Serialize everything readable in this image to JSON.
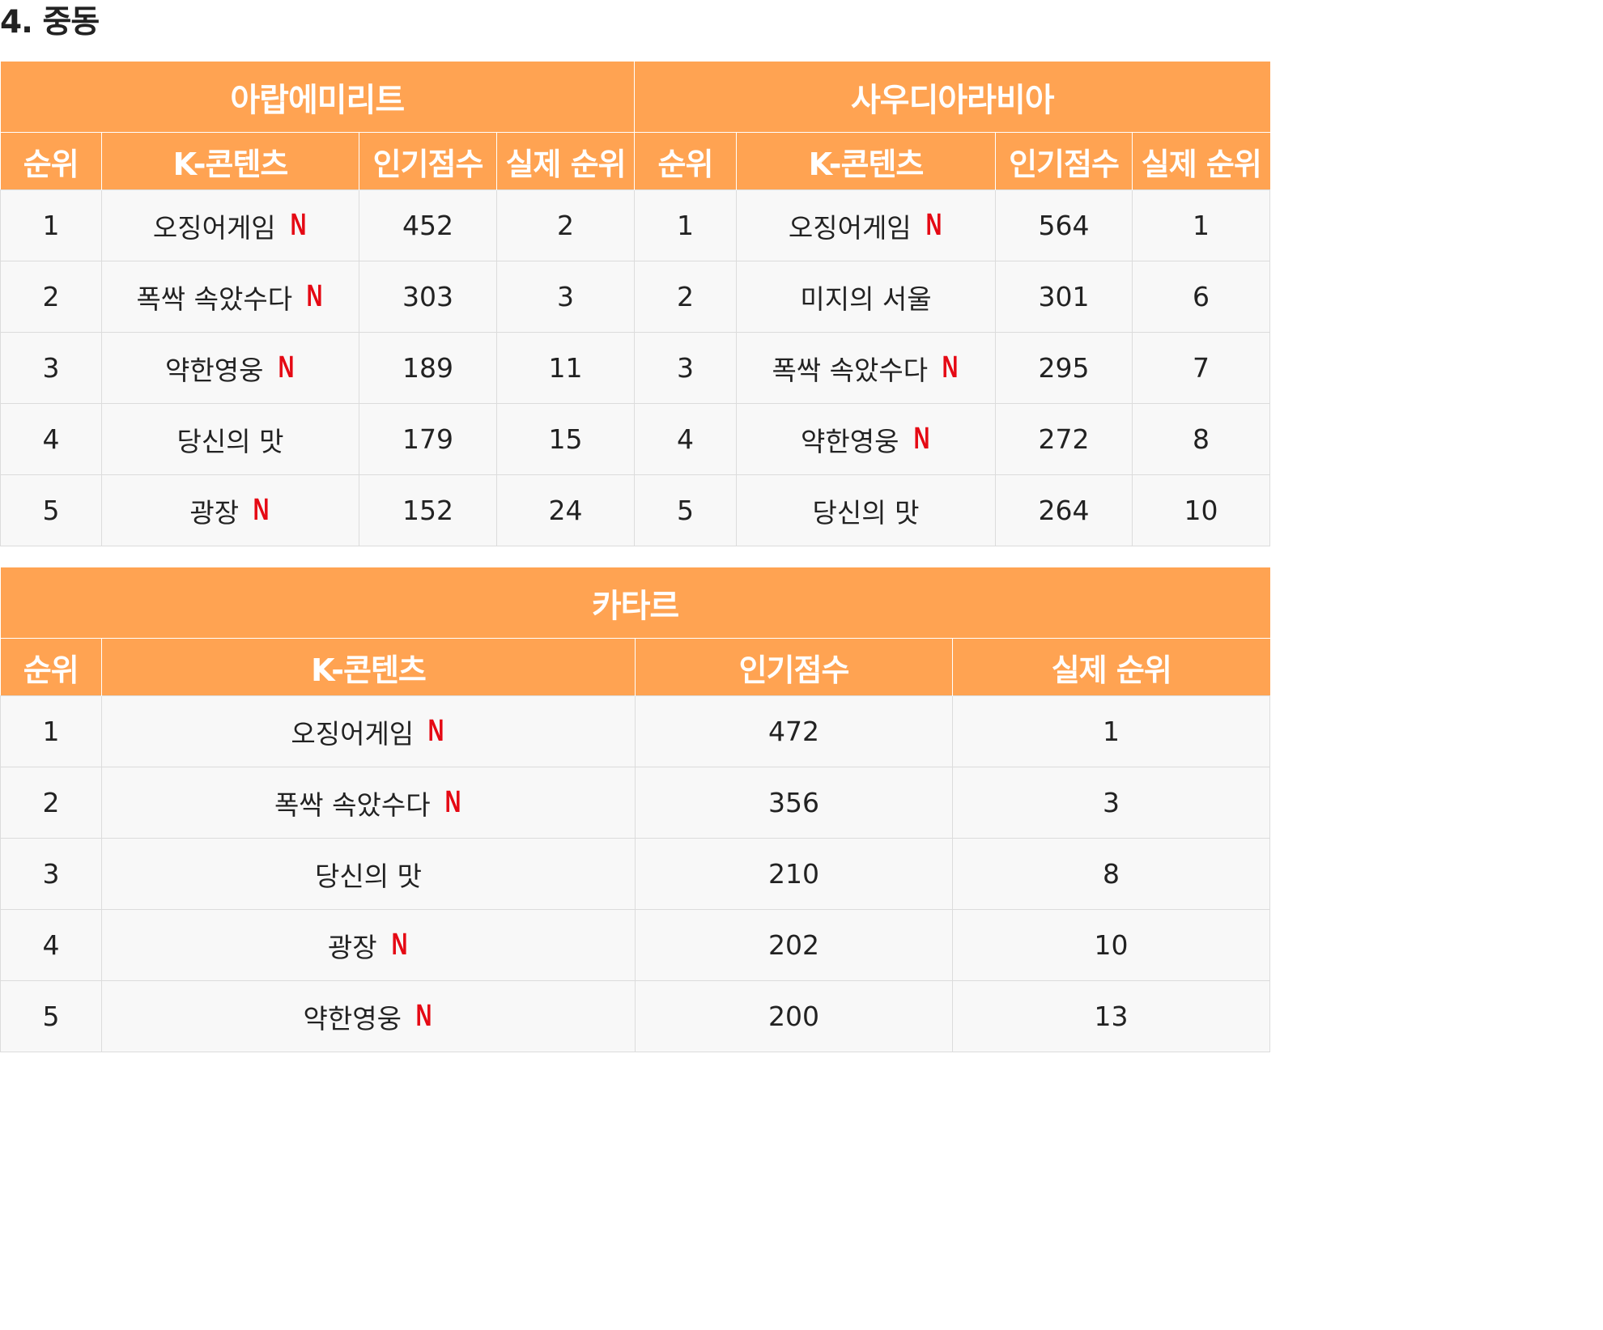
{
  "section_title": "4. 중동",
  "columns": [
    "순위",
    "K-콘텐츠",
    "인기점수",
    "실제 순위"
  ],
  "netflix_mark": "N",
  "uae": {
    "name": "아랍에미리트",
    "rows": [
      {
        "rank": "1",
        "title": "오징어게임",
        "netflix": true,
        "score": "452",
        "actual": "2"
      },
      {
        "rank": "2",
        "title": "폭싹 속았수다",
        "netflix": true,
        "score": "303",
        "actual": "3"
      },
      {
        "rank": "3",
        "title": "약한영웅",
        "netflix": true,
        "score": "189",
        "actual": "11"
      },
      {
        "rank": "4",
        "title": "당신의 맛",
        "netflix": false,
        "score": "179",
        "actual": "15"
      },
      {
        "rank": "5",
        "title": "광장",
        "netflix": true,
        "score": "152",
        "actual": "24"
      }
    ]
  },
  "saudi": {
    "name": "사우디아라비아",
    "rows": [
      {
        "rank": "1",
        "title": "오징어게임",
        "netflix": true,
        "score": "564",
        "actual": "1"
      },
      {
        "rank": "2",
        "title": "미지의 서울",
        "netflix": false,
        "score": "301",
        "actual": "6"
      },
      {
        "rank": "3",
        "title": "폭싹 속았수다",
        "netflix": true,
        "score": "295",
        "actual": "7"
      },
      {
        "rank": "4",
        "title": "약한영웅",
        "netflix": true,
        "score": "272",
        "actual": "8"
      },
      {
        "rank": "5",
        "title": "당신의 맛",
        "netflix": false,
        "score": "264",
        "actual": "10"
      }
    ]
  },
  "qatar": {
    "name": "카타르",
    "rows": [
      {
        "rank": "1",
        "title": "오징어게임",
        "netflix": true,
        "score": "472",
        "actual": "1"
      },
      {
        "rank": "2",
        "title": "폭싹 속았수다",
        "netflix": true,
        "score": "356",
        "actual": "3"
      },
      {
        "rank": "3",
        "title": "당신의 맛",
        "netflix": false,
        "score": "210",
        "actual": "8"
      },
      {
        "rank": "4",
        "title": "광장",
        "netflix": true,
        "score": "202",
        "actual": "10"
      },
      {
        "rank": "5",
        "title": "약한영웅",
        "netflix": true,
        "score": "200",
        "actual": "13"
      }
    ]
  },
  "colors": {
    "header": "#ffa352",
    "netflix": "#e50914",
    "cell": "#f8f8f8"
  }
}
